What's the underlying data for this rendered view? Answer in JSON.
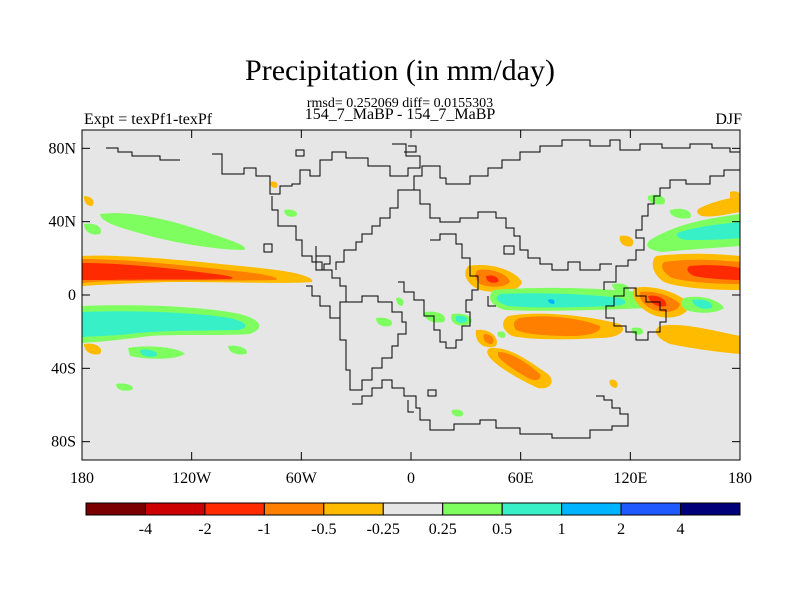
{
  "title": "Precipitation (in mm/day)",
  "stats": "rmsd= 0.252069 diff= 0.0155303",
  "subtitle": "154_7_MaBP - 154_7_MaBP",
  "left_label": "Expt = texPf1-texPf",
  "right_label": "DJF",
  "y_axis": {
    "ticks": [
      "80N",
      "40N",
      "0",
      "40S",
      "80S"
    ],
    "lat_values": [
      80,
      40,
      0,
      -40,
      -80
    ],
    "range": [
      -90,
      90
    ]
  },
  "x_axis": {
    "ticks": [
      "180",
      "120W",
      "60W",
      "0",
      "60E",
      "120E",
      "180"
    ],
    "lon_values": [
      -180,
      -120,
      -60,
      0,
      60,
      120,
      180
    ],
    "range": [
      -180,
      180
    ]
  },
  "colorbar": {
    "colors": [
      "#7a0000",
      "#cc0000",
      "#ff2a00",
      "#ff7f00",
      "#ffbb00",
      "#e6e6e6",
      "#7fff5f",
      "#38f0c8",
      "#00b4ff",
      "#1e5aff",
      "#000078"
    ],
    "labels": [
      "-4",
      "-2",
      "-1",
      "-0.5",
      "-0.25",
      "0.25",
      "0.5",
      "1",
      "2",
      "4"
    ]
  },
  "colors": {
    "background": "#e6e6e6",
    "coast": "#000000"
  }
}
